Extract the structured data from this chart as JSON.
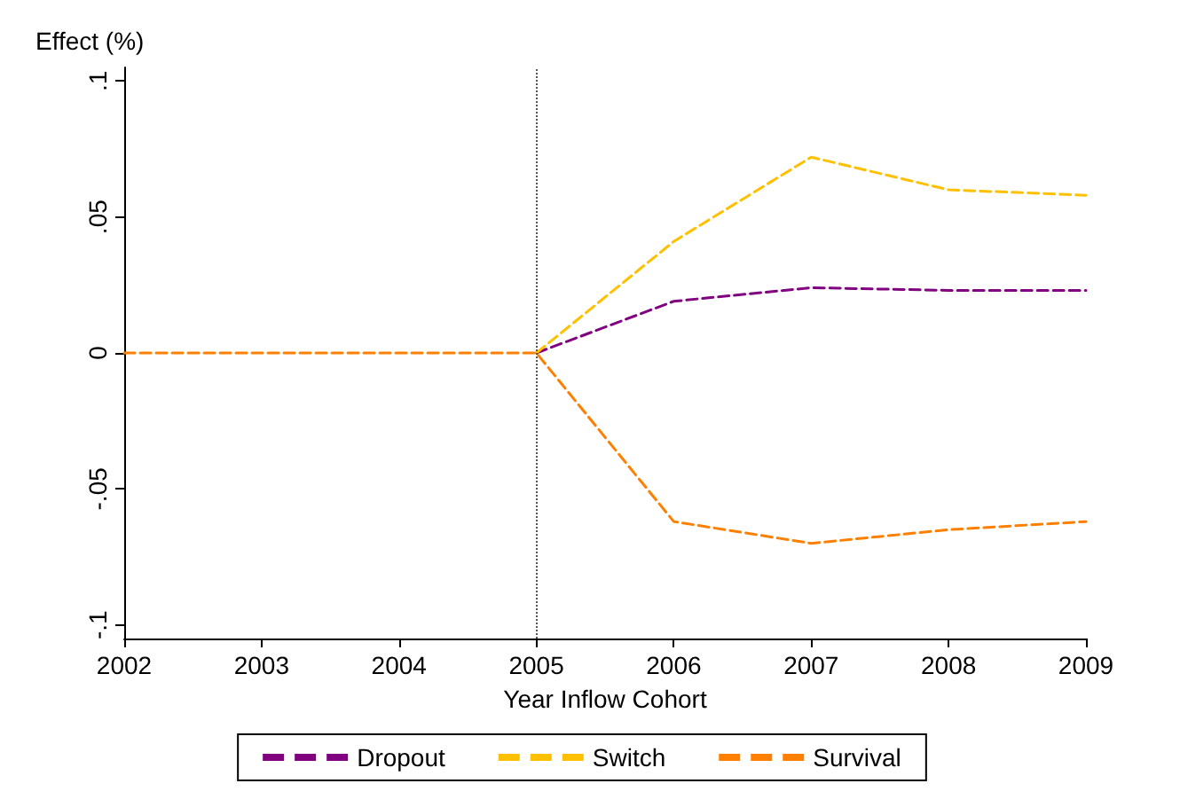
{
  "chart_data": {
    "type": "line",
    "ylabel": "Effect (%)",
    "xlabel": "Year Inflow Cohort",
    "x": [
      2002,
      2003,
      2004,
      2005,
      2006,
      2007,
      2008,
      2009
    ],
    "series": [
      {
        "name": "Dropout",
        "color": "#800080",
        "values": [
          null,
          null,
          null,
          0,
          0.019,
          0.024,
          0.023,
          0.023
        ]
      },
      {
        "name": "Switch",
        "color": "#ffc000",
        "values": [
          null,
          null,
          null,
          0,
          0.041,
          0.072,
          0.06,
          0.058
        ]
      },
      {
        "name": "Survival",
        "color": "#ff8000",
        "values": [
          0,
          0,
          0,
          0,
          -0.062,
          -0.07,
          -0.065,
          -0.062
        ]
      }
    ],
    "xlim": [
      2002,
      2009
    ],
    "xticks": [
      2002,
      2003,
      2004,
      2005,
      2006,
      2007,
      2008,
      2009
    ],
    "ylim": [
      -0.105,
      0.105
    ],
    "yticks": [
      {
        "value": -0.1,
        "label": "-.1"
      },
      {
        "value": -0.05,
        "label": "-.05"
      },
      {
        "value": 0,
        "label": "0"
      },
      {
        "value": 0.05,
        "label": ".05"
      },
      {
        "value": 0.1,
        "label": ".1"
      }
    ],
    "ref_lines": [
      {
        "axis": "x",
        "value": 2005,
        "label": null,
        "color": "#555555",
        "line_style": "dotted"
      }
    ],
    "line_style": "dashed",
    "marker": "none",
    "grid": false,
    "legend": "bottom"
  }
}
